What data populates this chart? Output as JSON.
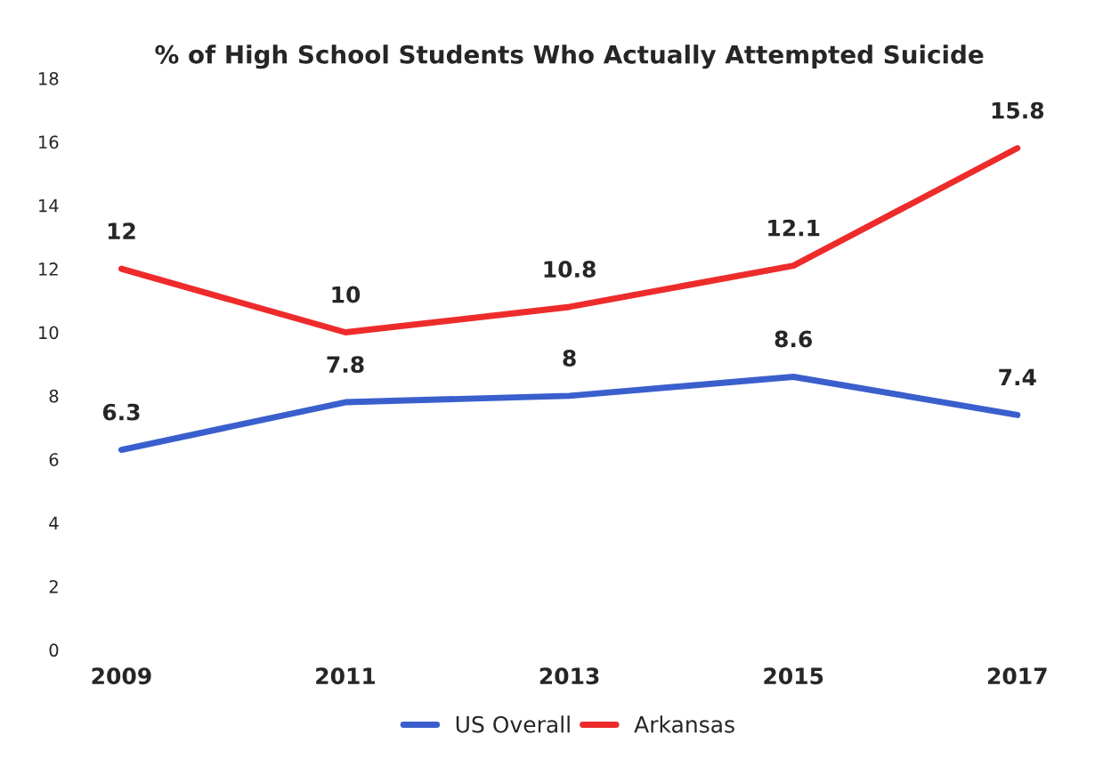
{
  "chart_data": {
    "type": "line",
    "title": "% of High School Students Who Actually Attempted Suicide",
    "categories": [
      "2009",
      "2011",
      "2013",
      "2015",
      "2017"
    ],
    "series": [
      {
        "name": "US Overall",
        "color": "#3a5fcd",
        "values": [
          6.3,
          7.8,
          8,
          8.6,
          7.4
        ]
      },
      {
        "name": "Arkansas",
        "color": "#ee2b2b",
        "values": [
          12,
          10,
          10.8,
          12.1,
          15.8
        ]
      }
    ],
    "ylim": [
      0,
      18
    ],
    "yticks": [
      0,
      2,
      4,
      6,
      8,
      10,
      12,
      14,
      16,
      18
    ],
    "grid": false,
    "legend": "bottom",
    "data_labels": true
  }
}
